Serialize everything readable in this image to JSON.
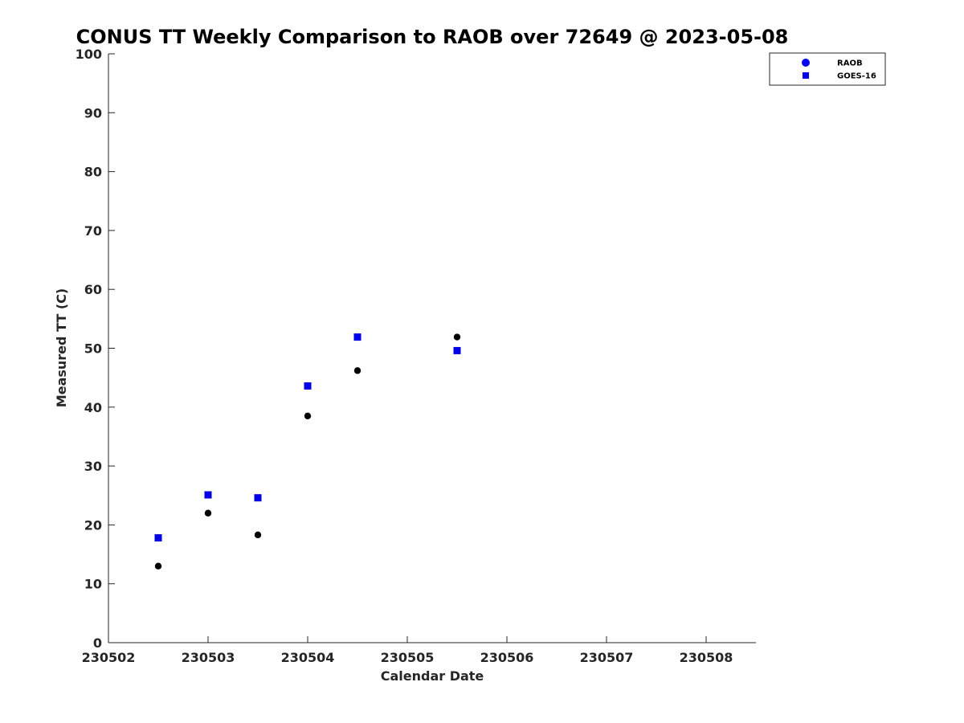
{
  "chart_data": {
    "type": "scatter",
    "title": "CONUS TT Weekly Comparison to RAOB over 72649 @ 2023-05-08",
    "xlabel": "Calendar Date",
    "ylabel": "Measured TT (C)",
    "x_tick_labels": [
      "230502",
      "230503",
      "230504",
      "230505",
      "230506",
      "230507",
      "230508"
    ],
    "y_tick_labels": [
      "0",
      "10",
      "20",
      "30",
      "40",
      "50",
      "60",
      "70",
      "80",
      "90",
      "100"
    ],
    "xlim": [
      "2023-05-02",
      "2023-05-08 12:00"
    ],
    "ylim": [
      0,
      100
    ],
    "grid": false,
    "legend_position": "top-right",
    "series": [
      {
        "name": "RAOB",
        "marker": "circle",
        "legend_color": "#0000ff",
        "point_color": "#000000",
        "points": [
          {
            "x": "2023-05-02 12:00",
            "y": 13.0
          },
          {
            "x": "2023-05-03 00:00",
            "y": 22.0
          },
          {
            "x": "2023-05-03 12:00",
            "y": 18.3
          },
          {
            "x": "2023-05-04 00:00",
            "y": 38.5
          },
          {
            "x": "2023-05-04 12:00",
            "y": 46.2
          },
          {
            "x": "2023-05-05 12:00",
            "y": 51.9
          }
        ]
      },
      {
        "name": "GOES-16",
        "marker": "square",
        "legend_color": "#0000ff",
        "point_color": "#0000ee",
        "points": [
          {
            "x": "2023-05-02 12:00",
            "y": 17.8
          },
          {
            "x": "2023-05-03 00:00",
            "y": 25.1
          },
          {
            "x": "2023-05-03 12:00",
            "y": 24.6
          },
          {
            "x": "2023-05-04 00:00",
            "y": 43.6
          },
          {
            "x": "2023-05-04 12:00",
            "y": 51.9
          },
          {
            "x": "2023-05-05 12:00",
            "y": 49.6
          }
        ]
      }
    ]
  }
}
